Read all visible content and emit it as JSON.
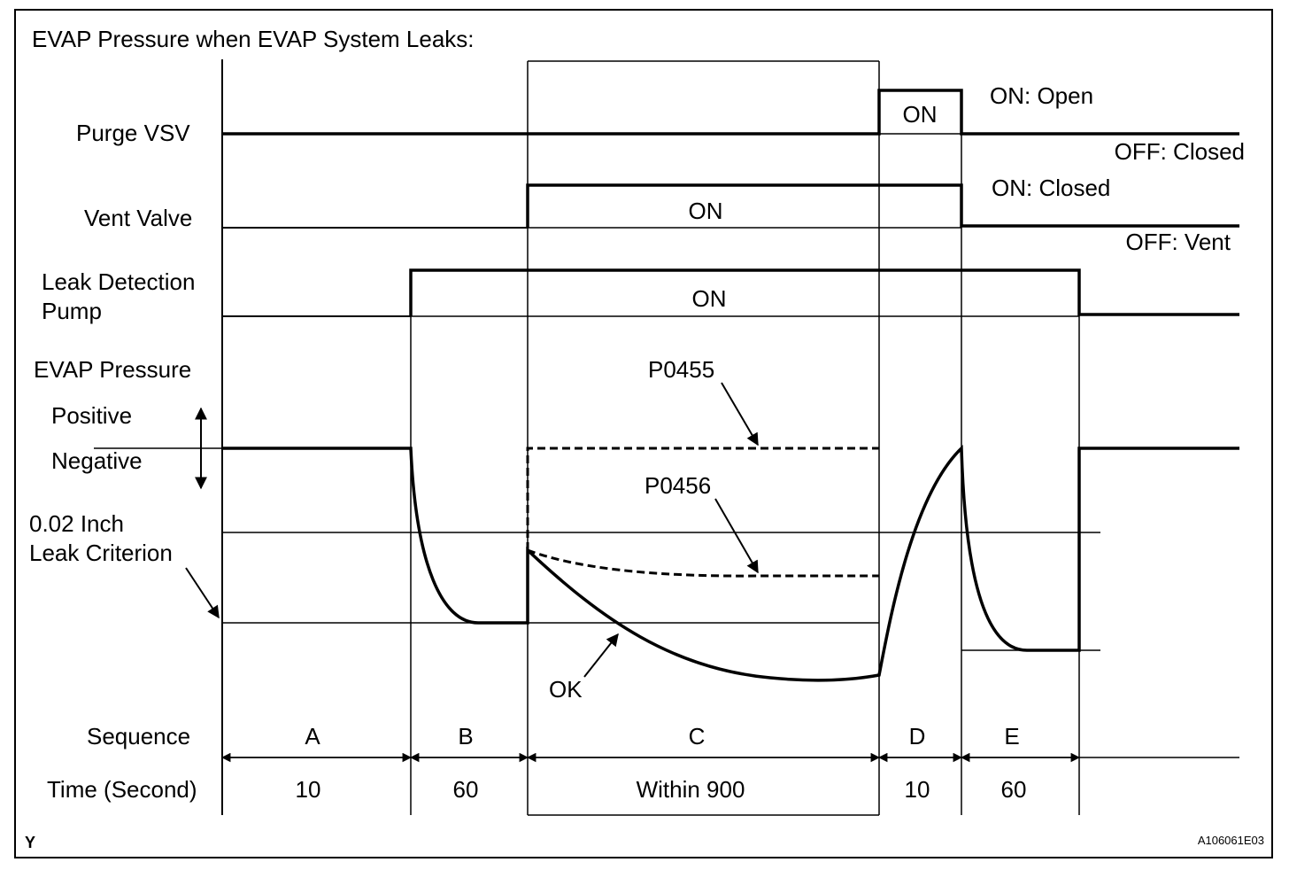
{
  "title": "EVAP Pressure when EVAP System Leaks:",
  "signals": {
    "purge_vsv": {
      "label": "Purge VSV",
      "on_text": "ON",
      "on_state": "ON: Open",
      "off_state": "OFF: Closed"
    },
    "vent_valve": {
      "label": "Vent Valve",
      "on_text": "ON",
      "on_state": "ON: Closed",
      "off_state": "OFF: Vent"
    },
    "leak_pump": {
      "label_line1": "Leak Detection",
      "label_line2": "Pump",
      "on_text": "ON"
    }
  },
  "pressure": {
    "label": "EVAP Pressure",
    "positive": "Positive",
    "negative": "Negative",
    "criterion_line1": "0.02 Inch",
    "criterion_line2": "Leak Criterion",
    "p0455": "P0455",
    "p0456": "P0456",
    "ok": "OK"
  },
  "sequence": {
    "label": "Sequence",
    "time_label": "Time (Second)",
    "steps": [
      {
        "name": "A",
        "time": "10"
      },
      {
        "name": "B",
        "time": "60"
      },
      {
        "name": "C",
        "time": "Within 900"
      },
      {
        "name": "D",
        "time": "10"
      },
      {
        "name": "E",
        "time": "60"
      }
    ]
  },
  "corner_mark": "Y",
  "figure_id": "A106061E03"
}
